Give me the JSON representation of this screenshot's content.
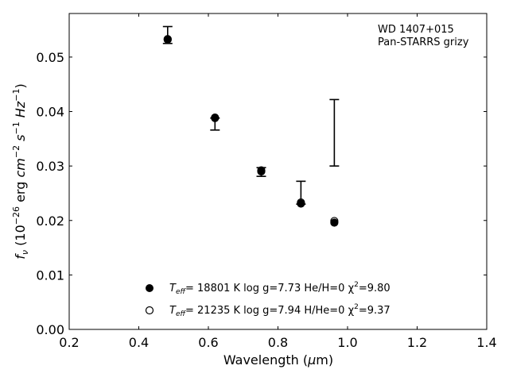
{
  "chart_data": {
    "type": "scatter",
    "xlabel": "Wavelength (μm)",
    "ylabel": "f_ν (10^-26 erg cm^-2 s^-1 Hz^-1)",
    "xlim": [
      0.2,
      1.4
    ],
    "ylim": [
      0.0,
      0.058
    ],
    "x_ticks": [
      "0.2",
      "0.4",
      "0.6",
      "0.8",
      "1.0",
      "1.2",
      "1.4"
    ],
    "y_ticks": [
      "0.00",
      "0.01",
      "0.02",
      "0.03",
      "0.04",
      "0.05"
    ],
    "annotations": [
      "WD 1407+015",
      "Pan-STARRS grizy"
    ],
    "observed": [
      {
        "x": 0.483,
        "y_low": 0.0525,
        "y_high": 0.0556
      },
      {
        "x": 0.619,
        "y_low": 0.0366,
        "y_high": 0.0388
      },
      {
        "x": 0.752,
        "y_low": 0.0281,
        "y_high": 0.0297
      },
      {
        "x": 0.866,
        "y_low": 0.023,
        "y_high": 0.0272
      },
      {
        "x": 0.962,
        "y_low": 0.03,
        "y_high": 0.0422
      }
    ],
    "series": [
      {
        "marker": "filled",
        "x": [
          0.483,
          0.619,
          0.752,
          0.866,
          0.962
        ],
        "y": [
          0.0533,
          0.0388,
          0.029,
          0.0231,
          0.0196
        ]
      },
      {
        "marker": "open",
        "x": [
          0.483,
          0.619,
          0.752,
          0.866,
          0.962
        ],
        "y": [
          0.0532,
          0.0389,
          0.0292,
          0.0233,
          0.0199
        ]
      }
    ],
    "legend": [
      {
        "marker": "filled",
        "teff_label": "T",
        "teff_sub": "eff",
        "text": "= 18801 K  log g=7.73  He/H=0  χ",
        "chi_sup": "2",
        "chi_text": "=9.80"
      },
      {
        "marker": "open",
        "teff_label": "T",
        "teff_sub": "eff",
        "text": "= 21235 K  log g=7.94  H/He=0  χ",
        "chi_sup": "2",
        "chi_text": "=9.37"
      }
    ],
    "legend_placement": "lower-center",
    "grid": false
  },
  "labels": {
    "xlabel_main": "Wavelength (",
    "xlabel_mu": "μ",
    "xlabel_m": "m)",
    "ylabel_f": "f",
    "ylabel_nu": "ν",
    "ylabel_pre": " (10",
    "ylabel_exp1": "−26",
    "ylabel_erg": " erg ",
    "ylabel_cm": "cm",
    "ylabel_exp2": "−2",
    "ylabel_s": " s",
    "ylabel_exp3": "−1",
    "ylabel_hz": " Hz",
    "ylabel_exp4": "−1",
    "ylabel_close": ")"
  }
}
